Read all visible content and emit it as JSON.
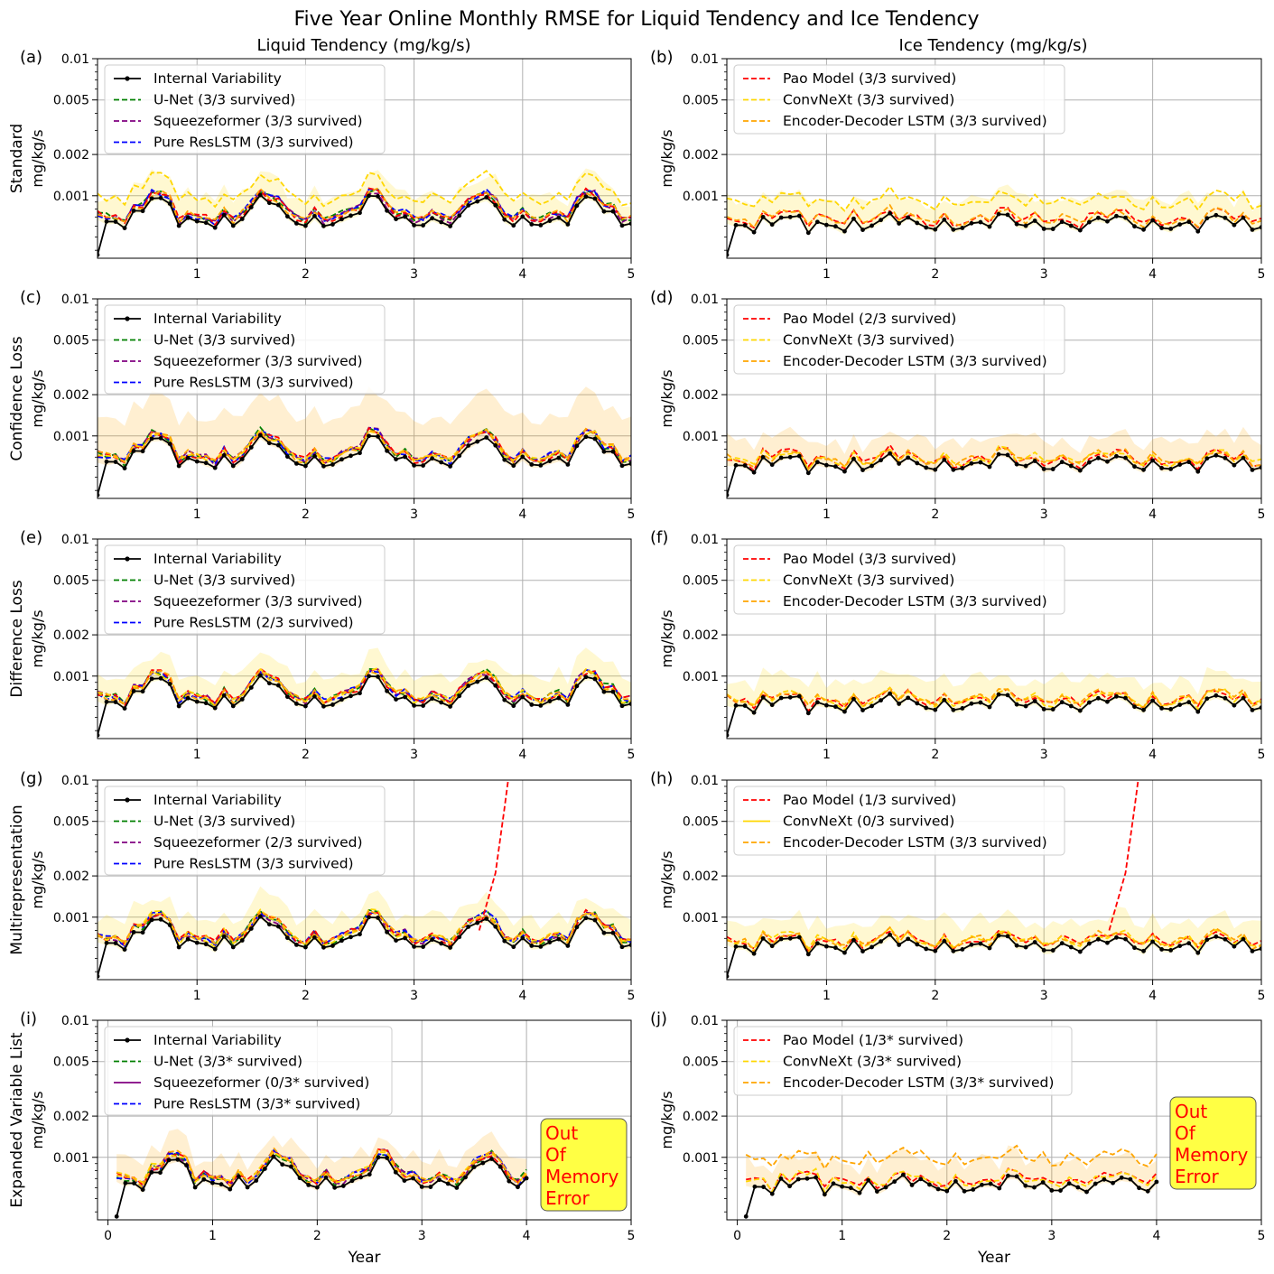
{
  "figure_title": "Five Year Online Monthly RMSE for Liquid Tendency and Ice Tendency",
  "column_titles": [
    "Liquid Tendency (mg/kg/s)",
    "Ice Tendency (mg/kg/s)"
  ],
  "row_labels": [
    "Standard",
    "Confidence Loss",
    "Difference Loss",
    "Multirepresentation",
    "Expanded Variable List"
  ],
  "y_unit_label": "mg/kg/s",
  "x_label": "Year",
  "oom_lines": [
    "Out",
    "Of",
    "Memory",
    "Error"
  ],
  "colors": {
    "internal": "#000000",
    "unet": "#008000",
    "squeeze": "#800080",
    "resl": "#0000ff",
    "pao": "#ff0000",
    "convnext": "#ffd700",
    "edlstm": "#ffa500",
    "oom_box": "#ffff44",
    "grid": "#b0b0b0"
  },
  "chart_data": [
    {
      "id": "a",
      "label": "(a)",
      "type": "line",
      "ylim": [
        0.00035,
        0.01
      ],
      "xlim": [
        0.083,
        5
      ],
      "yticks": [
        "0.01",
        "0.005",
        "0.002",
        "0.001"
      ],
      "xticks": [
        "1",
        "2",
        "3",
        "4",
        "5"
      ],
      "legend": [
        "Internal Variability",
        "U-Net (3/3 survived)",
        "Squeezeformer (3/3 survived)",
        "Pure ResLSTM (3/3 survived)"
      ]
    },
    {
      "id": "b",
      "label": "(b)",
      "type": "line",
      "ylim": [
        0.00035,
        0.01
      ],
      "xlim": [
        0.083,
        5
      ],
      "yticks": [
        "0.01",
        "0.005",
        "0.002",
        "0.001"
      ],
      "xticks": [
        "1",
        "2",
        "3",
        "4",
        "5"
      ],
      "legend": [
        "Pao Model (3/3 survived)",
        "ConvNeXt (3/3 survived)",
        "Encoder-Decoder LSTM (3/3 survived)"
      ]
    },
    {
      "id": "c",
      "label": "(c)",
      "type": "line",
      "ylim": [
        0.00035,
        0.01
      ],
      "xlim": [
        0.083,
        5
      ],
      "yticks": [
        "0.01",
        "0.005",
        "0.002",
        "0.001"
      ],
      "xticks": [
        "1",
        "2",
        "3",
        "4",
        "5"
      ],
      "legend": [
        "Internal Variability",
        "U-Net (3/3 survived)",
        "Squeezeformer (3/3 survived)",
        "Pure ResLSTM (3/3 survived)"
      ]
    },
    {
      "id": "d",
      "label": "(d)",
      "type": "line",
      "ylim": [
        0.00035,
        0.01
      ],
      "xlim": [
        0.083,
        5
      ],
      "yticks": [
        "0.01",
        "0.005",
        "0.002",
        "0.001"
      ],
      "xticks": [
        "1",
        "2",
        "3",
        "4",
        "5"
      ],
      "legend": [
        "Pao Model (2/3 survived)",
        "ConvNeXt (3/3 survived)",
        "Encoder-Decoder LSTM (3/3 survived)"
      ]
    },
    {
      "id": "e",
      "label": "(e)",
      "type": "line",
      "ylim": [
        0.00035,
        0.01
      ],
      "xlim": [
        0.083,
        5
      ],
      "yticks": [
        "0.01",
        "0.005",
        "0.002",
        "0.001"
      ],
      "xticks": [
        "1",
        "2",
        "3",
        "4",
        "5"
      ],
      "legend": [
        "Internal Variability",
        "U-Net (3/3 survived)",
        "Squeezeformer (3/3 survived)",
        "Pure ResLSTM (2/3 survived)"
      ]
    },
    {
      "id": "f",
      "label": "(f)",
      "type": "line",
      "ylim": [
        0.00035,
        0.01
      ],
      "xlim": [
        0.083,
        5
      ],
      "yticks": [
        "0.01",
        "0.005",
        "0.002",
        "0.001"
      ],
      "xticks": [
        "1",
        "2",
        "3",
        "4",
        "5"
      ],
      "legend": [
        "Pao Model (3/3 survived)",
        "ConvNeXt (3/3 survived)",
        "Encoder-Decoder LSTM (3/3 survived)"
      ]
    },
    {
      "id": "g",
      "label": "(g)",
      "type": "line",
      "ylim": [
        0.00035,
        0.01
      ],
      "xlim": [
        0.083,
        5
      ],
      "yticks": [
        "0.01",
        "0.005",
        "0.002",
        "0.001"
      ],
      "xticks": [
        "1",
        "2",
        "3",
        "4",
        "5"
      ],
      "legend": [
        "Internal Variability",
        "U-Net (3/3 survived)",
        "Squeezeformer (2/3 survived)",
        "Pure ResLSTM (3/3 survived)"
      ]
    },
    {
      "id": "h",
      "label": "(h)",
      "type": "line",
      "ylim": [
        0.00035,
        0.01
      ],
      "xlim": [
        0.083,
        5
      ],
      "yticks": [
        "0.01",
        "0.005",
        "0.002",
        "0.001"
      ],
      "xticks": [
        "1",
        "2",
        "3",
        "4",
        "5"
      ],
      "legend": [
        "Pao Model (1/3 survived)",
        "ConvNeXt (0/3 survived)",
        "Encoder-Decoder LSTM (3/3 survived)"
      ]
    },
    {
      "id": "i",
      "label": "(i)",
      "type": "line",
      "ylim": [
        0.00035,
        0.01
      ],
      "xlim": [
        -0.1,
        5
      ],
      "yticks": [
        "0.01",
        "0.005",
        "0.002",
        "0.001"
      ],
      "xticks": [
        "0",
        "1",
        "2",
        "3",
        "4",
        "5"
      ],
      "legend": [
        "Internal Variability",
        "U-Net (3/3* survived)",
        "Squeezeformer (0/3* survived)",
        "Pure ResLSTM (3/3* survived)"
      ]
    },
    {
      "id": "j",
      "label": "(j)",
      "type": "line",
      "ylim": [
        0.00035,
        0.01
      ],
      "xlim": [
        -0.1,
        5
      ],
      "yticks": [
        "0.01",
        "0.005",
        "0.002",
        "0.001"
      ],
      "xticks": [
        "0",
        "1",
        "2",
        "3",
        "4",
        "5"
      ],
      "legend": [
        "Pao Model (1/3* survived)",
        "ConvNeXt (3/3* survived)",
        "Encoder-Decoder LSTM (3/3* survived)"
      ]
    }
  ]
}
